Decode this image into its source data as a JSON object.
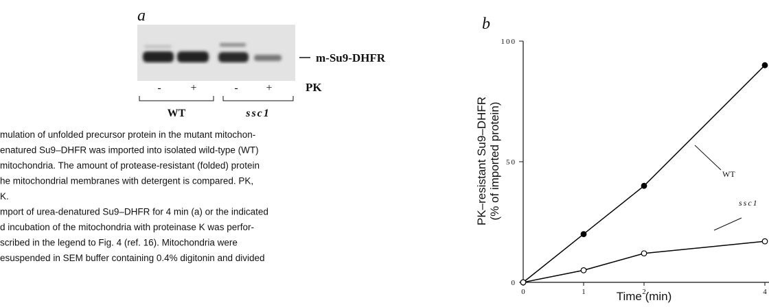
{
  "panel_a": {
    "label": "a",
    "band_label": "m-Su9-DHFR",
    "treatment_label": "PK",
    "lanes": [
      "-",
      "+",
      "-",
      "+"
    ],
    "groups": [
      "WT",
      "ssc1"
    ]
  },
  "caption": {
    "lines": [
      "mulation of unfolded precursor protein in the mutant mitochon-",
      "enatured Su9–DHFR was imported into isolated wild-type (WT)",
      "mitochondria. The amount of protease-resistant (folded) protein",
      "he mitochondrial membranes with detergent is compared. PK,",
      "K.",
      "mport of urea-denatured Su9–DHFR for 4 min (a) or the indicated",
      "d incubation of the mitochondria with proteinase K was perfor-",
      "scribed in the legend to Fig. 4 (ref. 16). Mitochondria were",
      "esuspended in SEM buffer containing 0.4% digitonin and divided"
    ]
  },
  "chart_data": {
    "type": "line",
    "panel_label": "b",
    "y_label": [
      "PK–resistant Su9–DHFR",
      "(% of imported protein)"
    ],
    "x_label": "Time (min)",
    "x": [
      0,
      1,
      2,
      4
    ],
    "series": [
      {
        "name": "WT",
        "color": "#000000",
        "marker": "filled",
        "values": [
          0,
          20,
          40,
          90
        ]
      },
      {
        "name": "ssc1",
        "color": "#000000",
        "marker": "open",
        "values": [
          0,
          5,
          12,
          17
        ]
      }
    ],
    "xlim": [
      0,
      4
    ],
    "xticks": [
      0,
      1,
      2,
      4
    ],
    "ylim": [
      0,
      100
    ],
    "yticks": [
      0,
      50,
      100
    ]
  }
}
